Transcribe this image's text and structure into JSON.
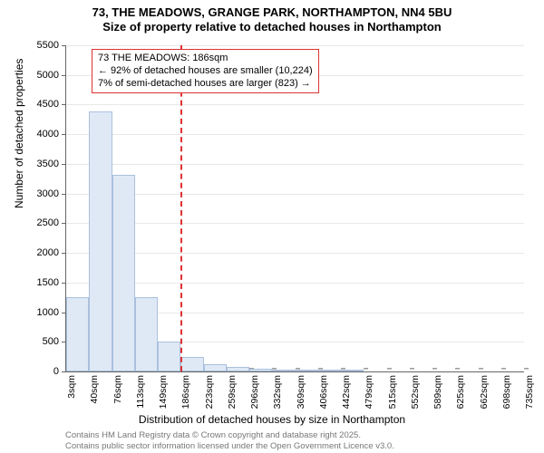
{
  "chart": {
    "type": "histogram",
    "title_line1": "73, THE MEADOWS, GRANGE PARK, NORTHAMPTON, NN4 5BU",
    "title_line2": "Size of property relative to detached houses in Northampton",
    "title_fontsize": 13,
    "ylabel": "Number of detached properties",
    "xlabel": "Distribution of detached houses by size in Northampton",
    "label_fontsize": 12,
    "tick_fontsize": 11,
    "background_color": "#ffffff",
    "grid_color": "#e8e8e8",
    "axis_color": "#666666",
    "bar_fill": "#dfe9f6",
    "bar_border": "#aac0dd",
    "marker_color": "#d33333",
    "ylim": [
      0,
      5500
    ],
    "ytick_step": 500,
    "yticks": [
      0,
      500,
      1000,
      1500,
      2000,
      2500,
      3000,
      3500,
      4000,
      4500,
      5000,
      5500
    ],
    "xticks": [
      "3sqm",
      "40sqm",
      "76sqm",
      "113sqm",
      "149sqm",
      "186sqm",
      "223sqm",
      "259sqm",
      "296sqm",
      "332sqm",
      "369sqm",
      "406sqm",
      "442sqm",
      "479sqm",
      "515sqm",
      "552sqm",
      "589sqm",
      "625sqm",
      "662sqm",
      "698sqm",
      "735sqm"
    ],
    "bars": [
      {
        "x_index": 1,
        "value": 1260
      },
      {
        "x_index": 2,
        "value": 4380
      },
      {
        "x_index": 3,
        "value": 3320
      },
      {
        "x_index": 4,
        "value": 1260
      },
      {
        "x_index": 5,
        "value": 500
      },
      {
        "x_index": 6,
        "value": 250
      },
      {
        "x_index": 7,
        "value": 120
      },
      {
        "x_index": 8,
        "value": 70
      },
      {
        "x_index": 9,
        "value": 50
      },
      {
        "x_index": 10,
        "value": 30
      },
      {
        "x_index": 11,
        "value": 15
      },
      {
        "x_index": 12,
        "value": 10
      },
      {
        "x_index": 13,
        "value": 5
      }
    ],
    "marker": {
      "x_index": 5
    },
    "annotation": {
      "line1": "73 THE MEADOWS: 186sqm",
      "line2": "← 92% of detached houses are smaller (10,224)",
      "line3": "7% of semi-detached houses are larger (823) →"
    },
    "footer": {
      "line1": "Contains HM Land Registry data © Crown copyright and database right 2025.",
      "line2": "Contains public sector information licensed under the Open Government Licence v3.0."
    }
  }
}
